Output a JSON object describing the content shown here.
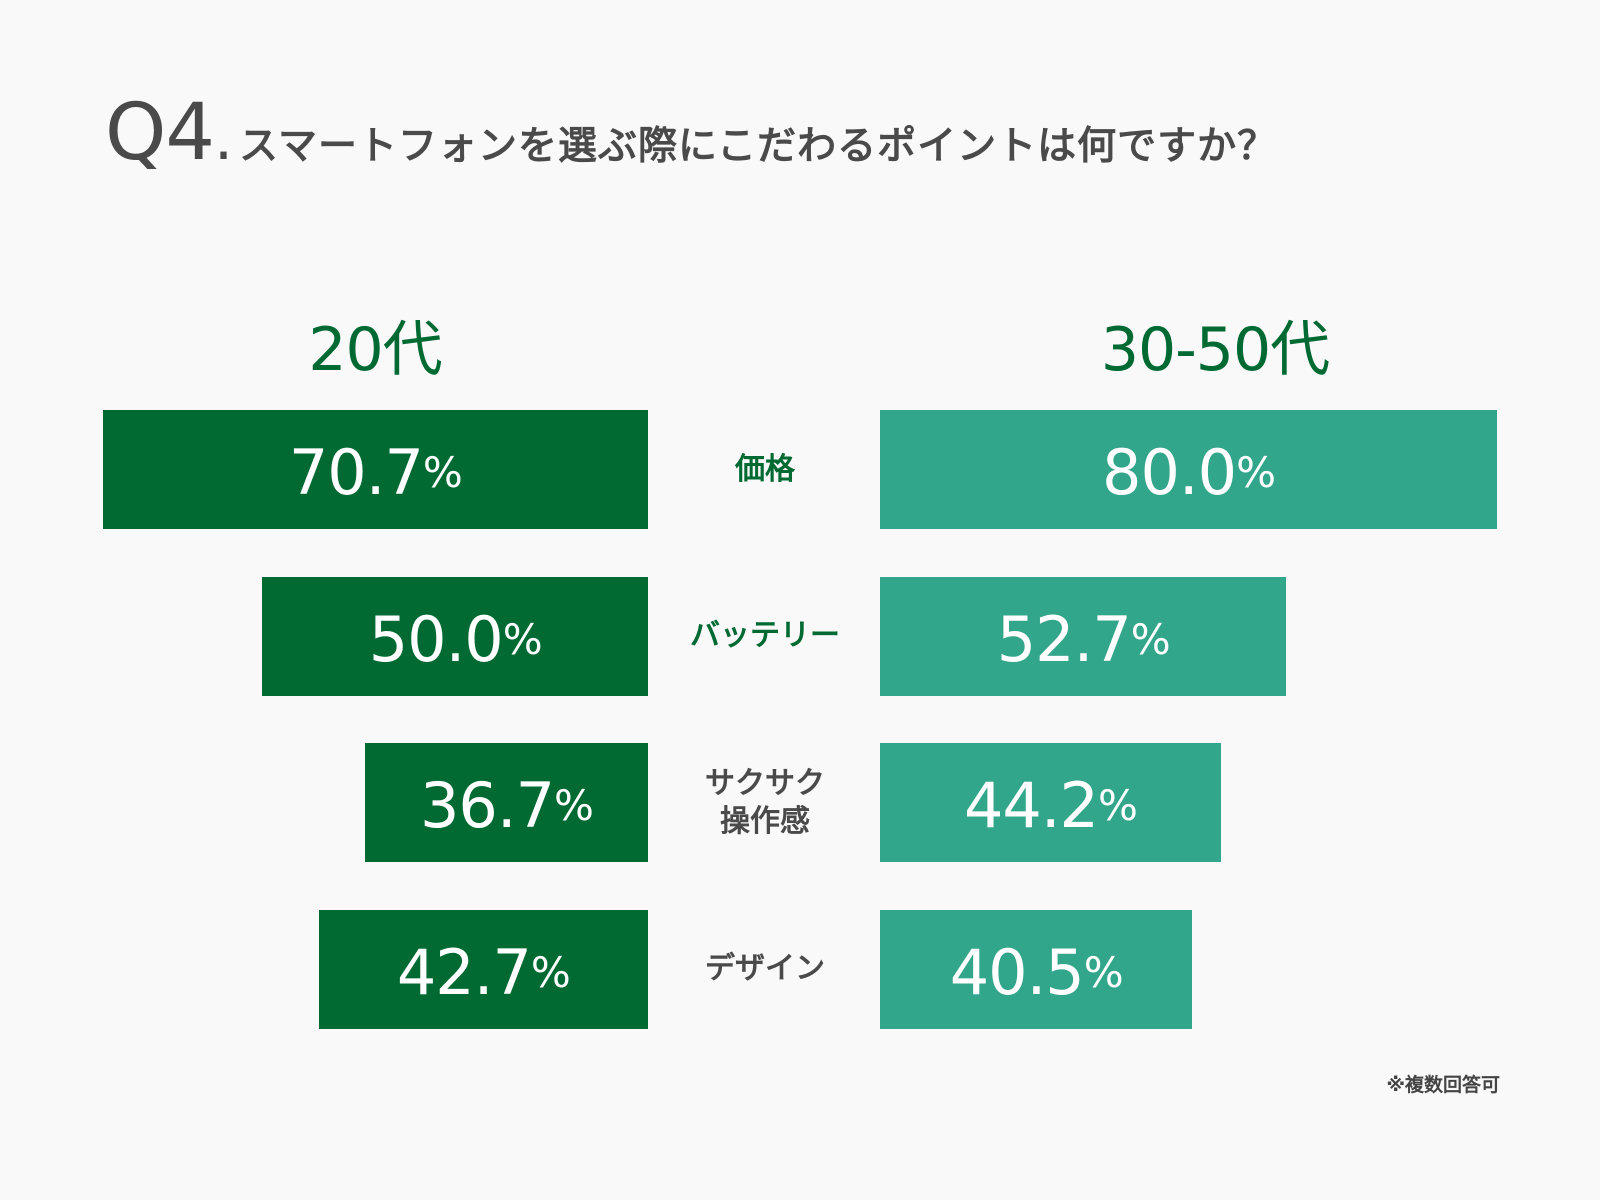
{
  "title": {
    "number": "Q4",
    "dot": ".",
    "text": "スマートフォンを選ぶ際にこだわるポイントは何ですか？"
  },
  "groups": {
    "left": "20代",
    "right": "30-50代"
  },
  "note": "※複数回答可",
  "colors": {
    "left": "#006a32",
    "right": "#32a68a",
    "cat_green": "#006a32",
    "cat_gray": "#4a4a4a"
  },
  "chart_data": {
    "type": "bar",
    "orientation": "horizontal-butterfly",
    "categories": [
      "価格",
      "バッテリー",
      "サクサク\n操作感",
      "デザイン"
    ],
    "series": [
      {
        "name": "20代",
        "values": [
          70.7,
          50.0,
          36.7,
          42.7
        ]
      },
      {
        "name": "30-50代",
        "values": [
          80.0,
          52.7,
          44.2,
          40.5
        ]
      }
    ],
    "unit": "%",
    "xlim": [
      0,
      80
    ]
  }
}
